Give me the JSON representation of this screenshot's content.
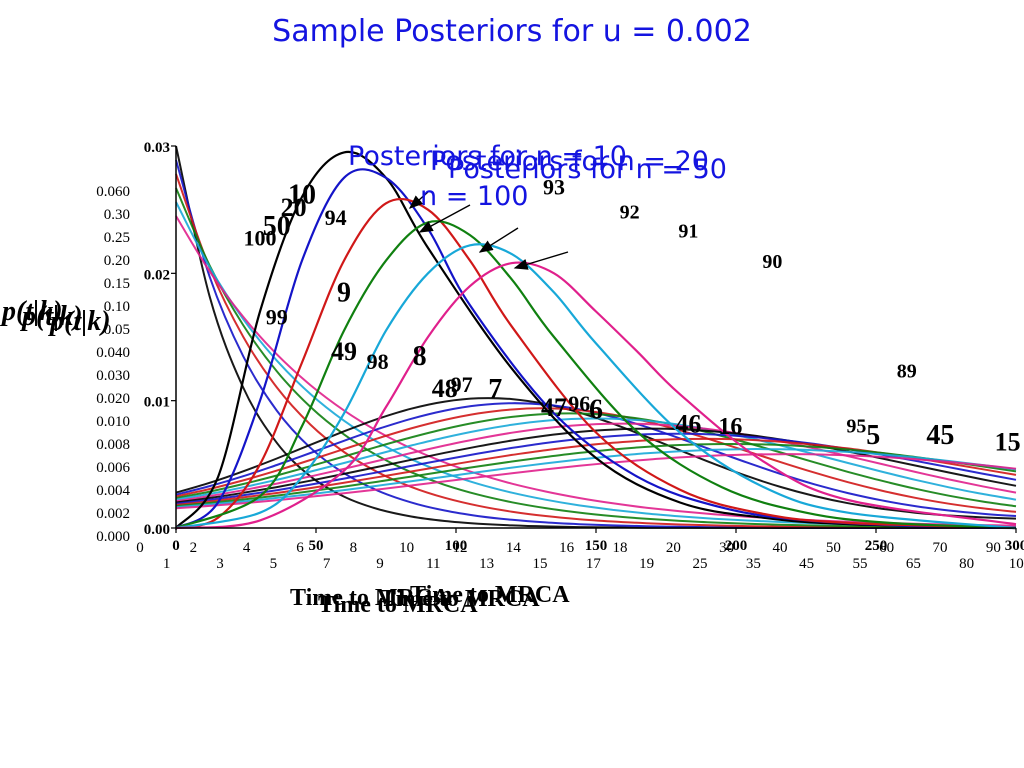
{
  "slide": {
    "title": "Sample Posteriors for u = 0.002"
  },
  "chart_data": {
    "type": "line",
    "xlabel": "Time to MRCA",
    "ylabel": "p(t|k)",
    "xlim": [
      0,
      100
    ],
    "ylim": [
      0,
      0.03
    ],
    "yticks": [
      "0.03",
      "0.02",
      "0.01",
      "0.00"
    ],
    "xticks": [
      "0",
      "50",
      "100",
      "150",
      "200",
      "250",
      "300"
    ],
    "overlay_titles": [
      "Posteriors for n = 10",
      "Posteriors for n = 20",
      "Posteriors for n = 50",
      "n = 100"
    ],
    "colors": [
      "#000000",
      "#1414c8",
      "#d01818",
      "#108010",
      "#18a8d8",
      "#e0208c"
    ],
    "series": [
      {
        "color": "#000000",
        "x": [
          0,
          5,
          10,
          15,
          20,
          25,
          30,
          40,
          50,
          60,
          70,
          80,
          100
        ],
        "y": [
          0.0,
          0.004,
          0.017,
          0.026,
          0.0295,
          0.0275,
          0.022,
          0.0125,
          0.0055,
          0.002,
          0.0008,
          0.0003,
          0.0
        ]
      },
      {
        "color": "#1414c8",
        "x": [
          0,
          5,
          10,
          15,
          20,
          25,
          30,
          35,
          45,
          55,
          65,
          75,
          90,
          100
        ],
        "y": [
          0.0,
          0.002,
          0.01,
          0.021,
          0.0275,
          0.0275,
          0.0235,
          0.0175,
          0.009,
          0.004,
          0.0016,
          0.0006,
          0.0001,
          0.0
        ]
      },
      {
        "color": "#d01818",
        "x": [
          0,
          5,
          10,
          15,
          20,
          25,
          30,
          35,
          40,
          50,
          60,
          70,
          80,
          100
        ],
        "y": [
          0.0,
          0.0008,
          0.005,
          0.013,
          0.021,
          0.0255,
          0.025,
          0.021,
          0.0158,
          0.0075,
          0.003,
          0.0011,
          0.0004,
          0.0
        ]
      },
      {
        "color": "#108010",
        "x": [
          0,
          10,
          15,
          20,
          25,
          30,
          35,
          40,
          45,
          55,
          65,
          75,
          85,
          100
        ],
        "y": [
          0.0,
          0.0025,
          0.008,
          0.0155,
          0.021,
          0.024,
          0.023,
          0.0195,
          0.015,
          0.0075,
          0.0032,
          0.0012,
          0.0004,
          0.0
        ]
      },
      {
        "color": "#18a8d8",
        "x": [
          0,
          10,
          15,
          20,
          25,
          30,
          35,
          40,
          45,
          50,
          60,
          70,
          80,
          100
        ],
        "y": [
          0.0,
          0.0012,
          0.004,
          0.009,
          0.0155,
          0.02,
          0.0222,
          0.0215,
          0.0185,
          0.0145,
          0.0075,
          0.0032,
          0.0012,
          0.0
        ]
      },
      {
        "color": "#e0208c",
        "x": [
          0,
          10,
          20,
          25,
          30,
          35,
          40,
          45,
          50,
          55,
          60,
          70,
          80,
          100
        ],
        "y": [
          0.0,
          0.0006,
          0.0045,
          0.0095,
          0.015,
          0.019,
          0.0208,
          0.02,
          0.017,
          0.0138,
          0.0105,
          0.0052,
          0.0022,
          0.0003
        ]
      }
    ],
    "curve_labels": [
      {
        "text": "10",
        "x": 15,
        "y": 0.0255,
        "size": 28
      },
      {
        "text": "20",
        "x": 14,
        "y": 0.0245,
        "size": 26
      },
      {
        "text": "94",
        "x": 19,
        "y": 0.0238,
        "size": 22
      },
      {
        "text": "50",
        "x": 12,
        "y": 0.023,
        "size": 28
      },
      {
        "text": "100",
        "x": 10,
        "y": 0.0222,
        "size": 22
      },
      {
        "text": "93",
        "x": 45,
        "y": 0.0262,
        "size": 22
      },
      {
        "text": "92",
        "x": 54,
        "y": 0.0243,
        "size": 20
      },
      {
        "text": "91",
        "x": 61,
        "y": 0.0228,
        "size": 20
      },
      {
        "text": "90",
        "x": 71,
        "y": 0.0204,
        "size": 20
      },
      {
        "text": "9",
        "x": 20,
        "y": 0.0178,
        "size": 28
      },
      {
        "text": "99",
        "x": 12,
        "y": 0.016,
        "size": 22
      },
      {
        "text": "49",
        "x": 20,
        "y": 0.0132,
        "size": 26
      },
      {
        "text": "98",
        "x": 24,
        "y": 0.0125,
        "size": 22
      },
      {
        "text": "8",
        "x": 29,
        "y": 0.0128,
        "size": 28
      },
      {
        "text": "48",
        "x": 32,
        "y": 0.0103,
        "size": 26
      },
      {
        "text": "97",
        "x": 34,
        "y": 0.0107,
        "size": 22
      },
      {
        "text": "7",
        "x": 38,
        "y": 0.0102,
        "size": 28
      },
      {
        "text": "47",
        "x": 45,
        "y": 0.0088,
        "size": 26
      },
      {
        "text": "96",
        "x": 48,
        "y": 0.0092,
        "size": 22
      },
      {
        "text": "6",
        "x": 50,
        "y": 0.0086,
        "size": 28
      },
      {
        "text": "46",
        "x": 61,
        "y": 0.0075,
        "size": 26
      },
      {
        "text": "16",
        "x": 66,
        "y": 0.0074,
        "size": 24
      },
      {
        "text": "89",
        "x": 87,
        "y": 0.0118,
        "size": 20
      },
      {
        "text": "95",
        "x": 81,
        "y": 0.0075,
        "size": 20
      },
      {
        "text": "5",
        "x": 83,
        "y": 0.0066,
        "size": 28
      },
      {
        "text": "45",
        "x": 91,
        "y": 0.0066,
        "size": 28
      },
      {
        "text": "15",
        "x": 99,
        "y": 0.0061,
        "size": 26
      }
    ],
    "extra_tick_labels": [
      "0",
      "1",
      "2",
      "3",
      "4",
      "5",
      "6",
      "7",
      "8",
      "9",
      "10",
      "11",
      "12",
      "13",
      "14",
      "15",
      "16",
      "17",
      "18",
      "19",
      "20",
      "25",
      "30",
      "35",
      "40",
      "45",
      "50",
      "55",
      "60",
      "65",
      "70",
      "80",
      "90",
      "100"
    ],
    "extra_y_labels": [
      "0.060",
      "0.30",
      "0.25",
      "0.20",
      "0.15",
      "0.10",
      "0.05",
      "0.040",
      "0.030",
      "0.020",
      "0.010",
      "0.008",
      "0.006",
      "0.004",
      "0.002",
      "0.000"
    ]
  }
}
